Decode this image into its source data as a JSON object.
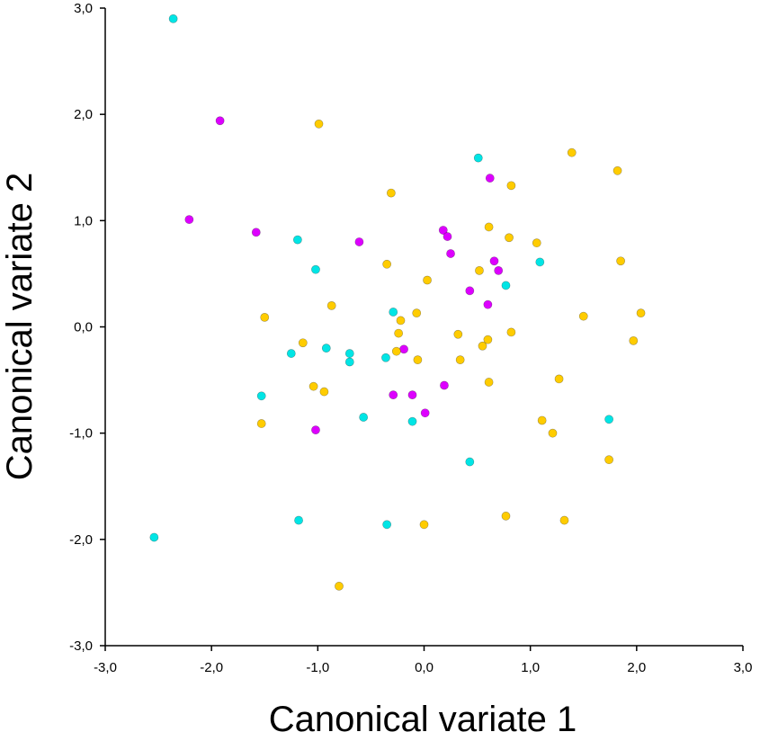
{
  "chart_data": {
    "type": "scatter",
    "title": "",
    "xlabel": "Canonical variate 1",
    "ylabel": "Canonical variate 2",
    "xlim": [
      -3.0,
      3.0
    ],
    "ylim": [
      -3.0,
      3.0
    ],
    "x_ticks": [
      "-3,0",
      "-2,0",
      "-1,0",
      "0,0",
      "1,0",
      "2,0",
      "3,0"
    ],
    "y_ticks": [
      "3,0",
      "2,0",
      "1,0",
      "0,0",
      "-1,0",
      "-2,0",
      "-3,0"
    ],
    "grid": false,
    "legend": "none",
    "series": [
      {
        "color": "#00e5e5",
        "points": [
          [
            -2.36,
            2.9
          ],
          [
            0.51,
            1.59
          ],
          [
            -1.19,
            0.82
          ],
          [
            -1.02,
            0.54
          ],
          [
            1.09,
            0.61
          ],
          [
            0.77,
            0.39
          ],
          [
            -0.29,
            0.14
          ],
          [
            -1.25,
            -0.25
          ],
          [
            -0.92,
            -0.2
          ],
          [
            -0.7,
            -0.25
          ],
          [
            -0.7,
            -0.33
          ],
          [
            -0.36,
            -0.29
          ],
          [
            -1.53,
            -0.65
          ],
          [
            -0.57,
            -0.85
          ],
          [
            -0.11,
            -0.89
          ],
          [
            1.74,
            -0.87
          ],
          [
            0.43,
            -1.27
          ],
          [
            -1.18,
            -1.82
          ],
          [
            -0.35,
            -1.86
          ],
          [
            -2.54,
            -1.98
          ]
        ]
      },
      {
        "color": "#dd00ff",
        "points": [
          [
            -1.92,
            1.94
          ],
          [
            -2.21,
            1.01
          ],
          [
            -1.58,
            0.89
          ],
          [
            -0.61,
            0.8
          ],
          [
            0.62,
            1.4
          ],
          [
            0.18,
            0.91
          ],
          [
            0.22,
            0.85
          ],
          [
            0.25,
            0.69
          ],
          [
            0.66,
            0.62
          ],
          [
            0.7,
            0.53
          ],
          [
            0.43,
            0.34
          ],
          [
            0.6,
            0.21
          ],
          [
            -0.19,
            -0.21
          ],
          [
            0.19,
            -0.55
          ],
          [
            -0.29,
            -0.64
          ],
          [
            -0.11,
            -0.64
          ],
          [
            0.01,
            -0.81
          ],
          [
            -1.02,
            -0.97
          ]
        ]
      },
      {
        "color": "#ffcc00",
        "points": [
          [
            -0.99,
            1.91
          ],
          [
            1.39,
            1.64
          ],
          [
            1.82,
            1.47
          ],
          [
            -0.31,
            1.26
          ],
          [
            0.82,
            1.33
          ],
          [
            0.61,
            0.94
          ],
          [
            0.8,
            0.84
          ],
          [
            1.06,
            0.79
          ],
          [
            -0.35,
            0.59
          ],
          [
            1.85,
            0.62
          ],
          [
            0.52,
            0.53
          ],
          [
            0.03,
            0.44
          ],
          [
            -0.87,
            0.2
          ],
          [
            -1.5,
            0.09
          ],
          [
            -0.07,
            0.13
          ],
          [
            -0.22,
            0.06
          ],
          [
            1.5,
            0.1
          ],
          [
            2.04,
            0.13
          ],
          [
            1.97,
            -0.13
          ],
          [
            -0.24,
            -0.06
          ],
          [
            0.32,
            -0.07
          ],
          [
            0.82,
            -0.05
          ],
          [
            -1.14,
            -0.15
          ],
          [
            0.6,
            -0.12
          ],
          [
            0.55,
            -0.18
          ],
          [
            -0.26,
            -0.23
          ],
          [
            -0.06,
            -0.31
          ],
          [
            0.34,
            -0.31
          ],
          [
            1.27,
            -0.49
          ],
          [
            0.61,
            -0.52
          ],
          [
            -1.04,
            -0.56
          ],
          [
            -0.94,
            -0.61
          ],
          [
            -1.53,
            -0.91
          ],
          [
            1.11,
            -0.88
          ],
          [
            1.21,
            -1.0
          ],
          [
            1.74,
            -1.25
          ],
          [
            0.77,
            -1.78
          ],
          [
            1.32,
            -1.82
          ],
          [
            0.0,
            -1.86
          ],
          [
            -0.8,
            -2.44
          ]
        ]
      }
    ]
  }
}
